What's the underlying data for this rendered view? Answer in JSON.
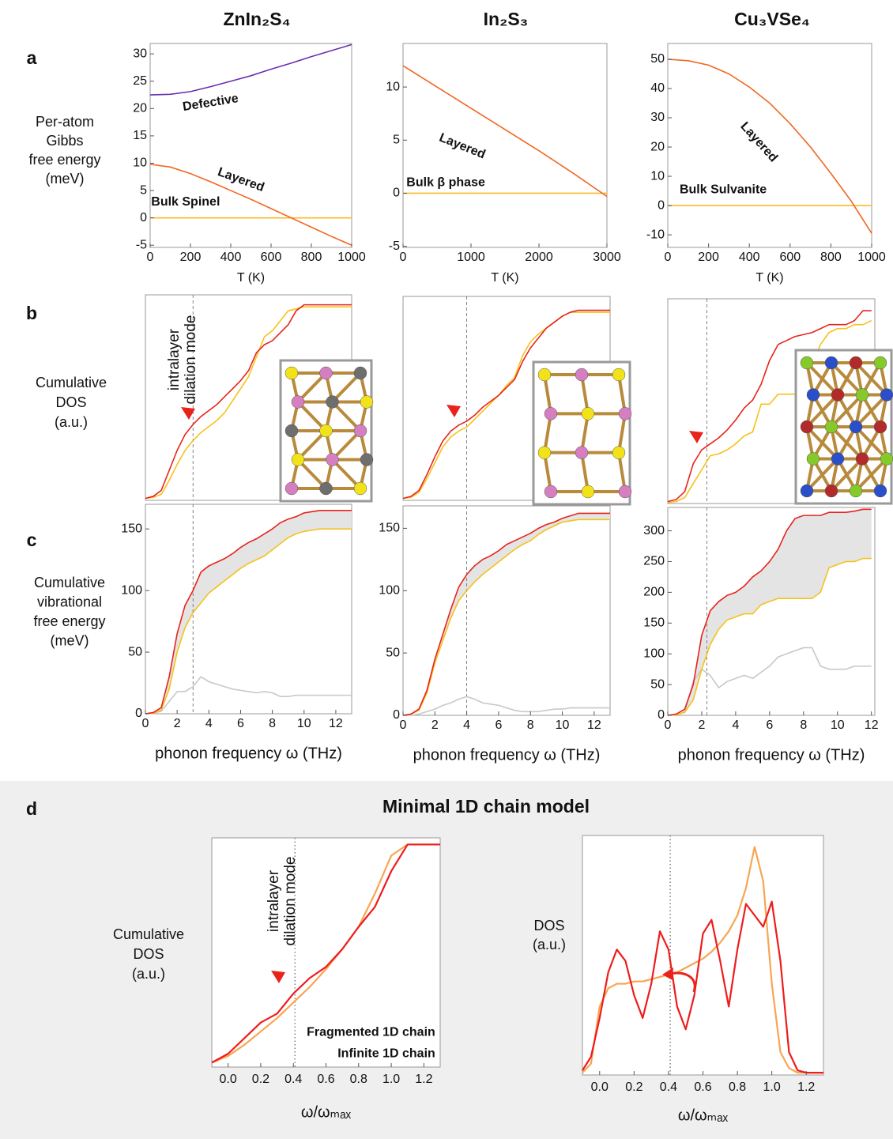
{
  "figure": {
    "columns": [
      "ZnIn₂S₄",
      "In₂S₃",
      "Cu₃VSe₄"
    ],
    "rows": [
      {
        "label": "a",
        "ylabel": [
          "Per-atom",
          "Gibbs",
          "free energy",
          "(meV)"
        ]
      },
      {
        "label": "b",
        "ylabel": [
          "Cumulative",
          "DOS",
          "(a.u.)"
        ]
      },
      {
        "label": "c",
        "ylabel": [
          "Cumulative",
          "vibrational",
          "free energy",
          "(meV)"
        ]
      },
      {
        "label": "d",
        "title": "Minimal 1D chain model"
      }
    ]
  },
  "chart_data": [
    {
      "type": "line",
      "xlabel": "T (K)",
      "x": [
        0,
        100,
        200,
        300,
        400,
        500,
        600,
        700,
        800,
        900,
        1000
      ],
      "series": [
        {
          "name": "Defective",
          "color": "#6a2fb0",
          "values": [
            22.5,
            22.6,
            23.1,
            24,
            25,
            26,
            27.2,
            28.3,
            29.5,
            30.6,
            31.7
          ]
        },
        {
          "name": "Layered",
          "color": "#f26722",
          "values": [
            9.8,
            9.3,
            8.1,
            6.6,
            5,
            3.4,
            1.7,
            0,
            -1.7,
            -3.4,
            -5
          ]
        },
        {
          "name": "Bulk Spinel",
          "color": "#fbb829",
          "values": [
            0,
            0,
            0,
            0,
            0,
            0,
            0,
            0,
            0,
            0,
            0
          ]
        }
      ],
      "xlim": [
        0,
        1000
      ],
      "xticks": [
        0,
        200,
        400,
        600,
        800,
        1000
      ],
      "ylim": [
        -5.4,
        31.9
      ],
      "yticks": [
        -5,
        0,
        5,
        10,
        15,
        20,
        25,
        30
      ]
    },
    {
      "type": "line",
      "xlabel": "T (K)",
      "x": [
        0,
        500,
        1000,
        1500,
        2000,
        2500,
        3000
      ],
      "series": [
        {
          "name": "Layered",
          "color": "#f26722",
          "values": [
            12,
            10,
            8,
            6,
            4,
            1.9,
            -0.3
          ]
        },
        {
          "name": "Bulk β phase",
          "color": "#fbb829",
          "values": [
            0,
            0,
            0,
            0,
            0,
            0,
            0
          ]
        }
      ],
      "xlim": [
        0,
        3000
      ],
      "xticks": [
        0,
        1000,
        2000,
        3000
      ],
      "ylim": [
        -5.1,
        14.1
      ],
      "yticks": [
        -5,
        0,
        5,
        10
      ]
    },
    {
      "type": "line",
      "xlabel": "T (K)",
      "x": [
        0,
        100,
        200,
        300,
        400,
        500,
        600,
        700,
        800,
        900,
        1000
      ],
      "series": [
        {
          "name": "Layered",
          "color": "#f26722",
          "values": [
            50,
            49.5,
            48,
            45,
            40.5,
            35,
            28,
            20,
            11,
            1.5,
            -9.5
          ]
        },
        {
          "name": "Bulk Sulvanite",
          "color": "#fbb829",
          "values": [
            0,
            0,
            0,
            0,
            0,
            0,
            0,
            0,
            0,
            0,
            0
          ]
        }
      ],
      "xlim": [
        0,
        1000
      ],
      "xticks": [
        0,
        200,
        400,
        600,
        800,
        1000
      ],
      "ylim": [
        -14.3,
        55.4
      ],
      "yticks": [
        -10,
        0,
        10,
        20,
        30,
        40,
        50
      ]
    },
    {
      "type": "line",
      "annotation": [
        "intralayer",
        "dilation mode"
      ],
      "vline": 3,
      "x": [
        0,
        0.5,
        1,
        1.5,
        2,
        2.5,
        3,
        3.5,
        4,
        4.5,
        5,
        5.5,
        6,
        6.5,
        7,
        7.5,
        8,
        8.5,
        9,
        9.5,
        10,
        10.5,
        11,
        11.5,
        12,
        12.5,
        13
      ],
      "series": [
        {
          "color": "#e8231c",
          "values": [
            0.01,
            0.02,
            0.05,
            0.15,
            0.25,
            0.33,
            0.38,
            0.42,
            0.45,
            0.48,
            0.52,
            0.56,
            0.6,
            0.65,
            0.74,
            0.78,
            0.8,
            0.84,
            0.88,
            0.95,
            0.98,
            0.98,
            0.98,
            0.98,
            0.98,
            0.98,
            0.98
          ]
        },
        {
          "color": "#f5c21b",
          "values": [
            0.01,
            0.015,
            0.03,
            0.1,
            0.18,
            0.25,
            0.3,
            0.34,
            0.37,
            0.4,
            0.44,
            0.5,
            0.56,
            0.62,
            0.72,
            0.82,
            0.85,
            0.9,
            0.95,
            0.96,
            0.97,
            0.97,
            0.97,
            0.97,
            0.97,
            0.97,
            0.97
          ]
        }
      ],
      "xlim": [
        0,
        13
      ],
      "ylim": [
        0,
        1.03
      ]
    },
    {
      "type": "line",
      "vline": 4,
      "x": [
        0,
        0.5,
        1,
        1.5,
        2,
        2.5,
        3,
        3.5,
        4,
        4.5,
        5,
        5.5,
        6,
        6.5,
        7,
        7.5,
        8,
        8.5,
        9,
        9.5,
        10,
        10.5,
        11,
        11.5,
        12,
        12.5,
        13
      ],
      "series": [
        {
          "color": "#e8231c",
          "values": [
            0.01,
            0.02,
            0.05,
            0.13,
            0.22,
            0.3,
            0.35,
            0.38,
            0.4,
            0.43,
            0.47,
            0.5,
            0.53,
            0.57,
            0.61,
            0.7,
            0.77,
            0.82,
            0.87,
            0.9,
            0.93,
            0.95,
            0.96,
            0.96,
            0.96,
            0.96,
            0.96
          ]
        },
        {
          "color": "#f5c21b",
          "values": [
            0.01,
            0.015,
            0.04,
            0.11,
            0.19,
            0.27,
            0.32,
            0.35,
            0.37,
            0.41,
            0.45,
            0.49,
            0.53,
            0.58,
            0.62,
            0.73,
            0.8,
            0.84,
            0.87,
            0.9,
            0.93,
            0.95,
            0.95,
            0.95,
            0.95,
            0.95,
            0.95
          ]
        }
      ],
      "xlim": [
        0,
        13
      ],
      "ylim": [
        0,
        1.03
      ]
    },
    {
      "type": "line",
      "vline": 2.3,
      "x": [
        0,
        0.5,
        1,
        1.5,
        2,
        2.5,
        3,
        3.5,
        4,
        4.5,
        5,
        5.5,
        6,
        6.5,
        7,
        7.5,
        8,
        8.5,
        9,
        9.5,
        10,
        10.5,
        11,
        11.5,
        12
      ],
      "series": [
        {
          "color": "#e8231c",
          "values": [
            0.01,
            0.02,
            0.06,
            0.2,
            0.27,
            0.3,
            0.33,
            0.37,
            0.42,
            0.48,
            0.52,
            0.6,
            0.72,
            0.8,
            0.82,
            0.84,
            0.85,
            0.86,
            0.88,
            0.9,
            0.9,
            0.9,
            0.92,
            0.97,
            0.97
          ]
        },
        {
          "color": "#f5c21b",
          "values": [
            0.005,
            0.01,
            0.03,
            0.1,
            0.17,
            0.24,
            0.25,
            0.27,
            0.3,
            0.34,
            0.36,
            0.5,
            0.5,
            0.55,
            0.55,
            0.55,
            0.6,
            0.7,
            0.8,
            0.86,
            0.88,
            0.88,
            0.9,
            0.9,
            0.92
          ]
        }
      ],
      "xlim": [
        0,
        12.2
      ],
      "ylim": [
        0,
        1.03
      ]
    },
    {
      "type": "line",
      "xlabel": "phonon frequency ω (THz)",
      "vline": 3,
      "fill_between": "#e4e4e4",
      "x": [
        0,
        0.5,
        1,
        1.5,
        2,
        2.5,
        3,
        3.5,
        4,
        4.5,
        5,
        5.5,
        6,
        6.5,
        7,
        7.5,
        8,
        8.5,
        9,
        9.5,
        10,
        10.5,
        11,
        11.5,
        12,
        12.5,
        13
      ],
      "series": [
        {
          "color": "#e8231c",
          "values": [
            0,
            1,
            5,
            30,
            65,
            88,
            100,
            115,
            120,
            123,
            126,
            130,
            135,
            139,
            142,
            146,
            150,
            155,
            158,
            160,
            163,
            164,
            165,
            165,
            165,
            165,
            165
          ]
        },
        {
          "color": "#f5c21b",
          "values": [
            0,
            0.5,
            3,
            20,
            50,
            70,
            82,
            90,
            98,
            103,
            108,
            113,
            118,
            122,
            125,
            128,
            133,
            138,
            143,
            146,
            148,
            149,
            150,
            150,
            150,
            150,
            150
          ]
        },
        {
          "color": "#c8c8c8",
          "values": [
            0,
            0.5,
            2,
            10,
            18,
            18,
            22,
            30,
            26,
            24,
            22,
            20,
            19,
            18,
            17,
            18,
            17,
            14,
            14,
            15,
            15,
            15,
            15,
            15,
            15,
            15,
            15
          ]
        }
      ],
      "xlim": [
        0,
        13
      ],
      "xticks": [
        0,
        2,
        4,
        6,
        8,
        10,
        12
      ],
      "ylim": [
        0,
        170
      ],
      "yticks": [
        0,
        50,
        100,
        150
      ]
    },
    {
      "type": "line",
      "xlabel": "phonon frequency ω (THz)",
      "vline": 4,
      "fill_between": "#e4e4e4",
      "x": [
        0,
        0.5,
        1,
        1.5,
        2,
        2.5,
        3,
        3.5,
        4,
        4.5,
        5,
        5.5,
        6,
        6.5,
        7,
        7.5,
        8,
        8.5,
        9,
        9.5,
        10,
        10.5,
        11,
        11.5,
        12,
        12.5,
        13
      ],
      "series": [
        {
          "color": "#e8231c",
          "values": [
            0,
            1,
            5,
            20,
            45,
            65,
            85,
            103,
            113,
            120,
            125,
            128,
            132,
            137,
            140,
            143,
            146,
            150,
            153,
            155,
            158,
            160,
            162,
            162,
            162,
            162,
            162
          ]
        },
        {
          "color": "#f5c21b",
          "values": [
            0,
            1,
            4,
            18,
            42,
            60,
            78,
            92,
            100,
            107,
            113,
            118,
            123,
            128,
            133,
            137,
            140,
            145,
            149,
            152,
            155,
            156,
            157,
            157,
            157,
            157,
            157
          ]
        },
        {
          "color": "#c8c8c8",
          "values": [
            0,
            0,
            1,
            3,
            5,
            8,
            10,
            13,
            15,
            13,
            10,
            9,
            8,
            6,
            4,
            3,
            3,
            3,
            4,
            5,
            5,
            6,
            6,
            6,
            6,
            6,
            6
          ]
        }
      ],
      "xlim": [
        0,
        13
      ],
      "xticks": [
        0,
        2,
        4,
        6,
        8,
        10,
        12
      ],
      "ylim": [
        0,
        168
      ],
      "yticks": [
        0,
        50,
        100,
        150
      ]
    },
    {
      "type": "line",
      "xlabel": "phonon frequency ω (THz)",
      "vline": 2.3,
      "fill_between": "#e4e4e4",
      "x": [
        0,
        0.5,
        1,
        1.5,
        2,
        2.5,
        3,
        3.5,
        4,
        4.5,
        5,
        5.5,
        6,
        6.5,
        7,
        7.5,
        8,
        8.5,
        9,
        9.5,
        10,
        10.5,
        11,
        11.5,
        12
      ],
      "series": [
        {
          "color": "#e8231c",
          "values": [
            0,
            2,
            10,
            50,
            130,
            170,
            185,
            195,
            200,
            210,
            225,
            235,
            250,
            270,
            300,
            320,
            325,
            325,
            325,
            330,
            330,
            330,
            332,
            335,
            335
          ]
        },
        {
          "color": "#f5c21b",
          "values": [
            0,
            1,
            5,
            25,
            75,
            115,
            140,
            155,
            160,
            165,
            165,
            180,
            185,
            190,
            190,
            190,
            190,
            190,
            200,
            240,
            245,
            250,
            250,
            255,
            255
          ]
        },
        {
          "color": "#c8c8c8",
          "values": [
            0,
            1,
            5,
            55,
            75,
            65,
            45,
            55,
            60,
            65,
            60,
            70,
            80,
            95,
            100,
            105,
            110,
            110,
            80,
            75,
            75,
            75,
            80,
            80,
            80
          ]
        }
      ],
      "xlim": [
        0,
        12.2
      ],
      "xticks": [
        0,
        2,
        4,
        6,
        8,
        10,
        12
      ],
      "ylim": [
        0,
        338
      ],
      "yticks": [
        0,
        50,
        100,
        150,
        200,
        250,
        300
      ]
    },
    {
      "type": "line",
      "xlabel": "ω/ωₘₐₓ",
      "ylabel": [
        "Cumulative",
        "DOS",
        "(a.u.)"
      ],
      "annotation": [
        "intralayer",
        "dilation mode"
      ],
      "vline": 0.41,
      "x": [
        -0.1,
        0,
        0.1,
        0.2,
        0.3,
        0.4,
        0.5,
        0.6,
        0.7,
        0.8,
        0.9,
        1,
        1.1,
        1.2,
        1.3
      ],
      "series": [
        {
          "name": "Fragmented 1D chain",
          "color": "#ee1c1c",
          "values": [
            0.02,
            0.06,
            0.13,
            0.2,
            0.24,
            0.33,
            0.4,
            0.45,
            0.53,
            0.63,
            0.72,
            0.88,
            1,
            1,
            1
          ]
        },
        {
          "name": "Infinite 1D chain",
          "color": "#f8a552",
          "values": [
            0.02,
            0.05,
            0.1,
            0.16,
            0.22,
            0.29,
            0.36,
            0.44,
            0.53,
            0.63,
            0.78,
            0.95,
            1,
            1,
            1
          ]
        }
      ],
      "xlim": [
        -0.1,
        1.3
      ],
      "xticks": [
        {
          "value": 0,
          "label": "0.0"
        },
        0.2,
        0.4,
        0.6,
        0.8,
        {
          "value": 1,
          "label": "1.0"
        },
        1.2
      ],
      "ylim": [
        0,
        1.03
      ]
    },
    {
      "type": "line",
      "xlabel": "ω/ωₘₐₓ",
      "ylabel": [
        "DOS",
        "(a.u.)"
      ],
      "vline": 0.41,
      "x": [
        -0.1,
        -0.05,
        0,
        0.05,
        0.1,
        0.15,
        0.2,
        0.25,
        0.3,
        0.35,
        0.4,
        0.45,
        0.5,
        0.55,
        0.6,
        0.65,
        0.7,
        0.75,
        0.8,
        0.85,
        0.9,
        0.95,
        1,
        1.05,
        1.1,
        1.15,
        1.2,
        1.25,
        1.3
      ],
      "series": [
        {
          "color": "#ee1c1c",
          "values": [
            0.02,
            0.08,
            0.25,
            0.45,
            0.55,
            0.5,
            0.35,
            0.25,
            0.4,
            0.63,
            0.55,
            0.3,
            0.2,
            0.35,
            0.62,
            0.68,
            0.5,
            0.3,
            0.55,
            0.75,
            0.7,
            0.65,
            0.76,
            0.5,
            0.1,
            0.02,
            0.01,
            0.01,
            0.01
          ]
        },
        {
          "color": "#f8a552",
          "values": [
            0.01,
            0.05,
            0.3,
            0.38,
            0.4,
            0.4,
            0.41,
            0.41,
            0.42,
            0.43,
            0.44,
            0.45,
            0.47,
            0.49,
            0.51,
            0.54,
            0.58,
            0.63,
            0.7,
            0.82,
            1,
            0.85,
            0.4,
            0.1,
            0.03,
            0.01,
            0.01,
            0.01,
            0.01
          ]
        }
      ],
      "xlim": [
        -0.1,
        1.3
      ],
      "xticks": [
        {
          "value": 0,
          "label": "0.0"
        },
        0.2,
        0.4,
        0.6,
        0.8,
        {
          "value": 1,
          "label": "1.0"
        },
        1.2
      ],
      "ylim": [
        0,
        1.05
      ]
    }
  ]
}
